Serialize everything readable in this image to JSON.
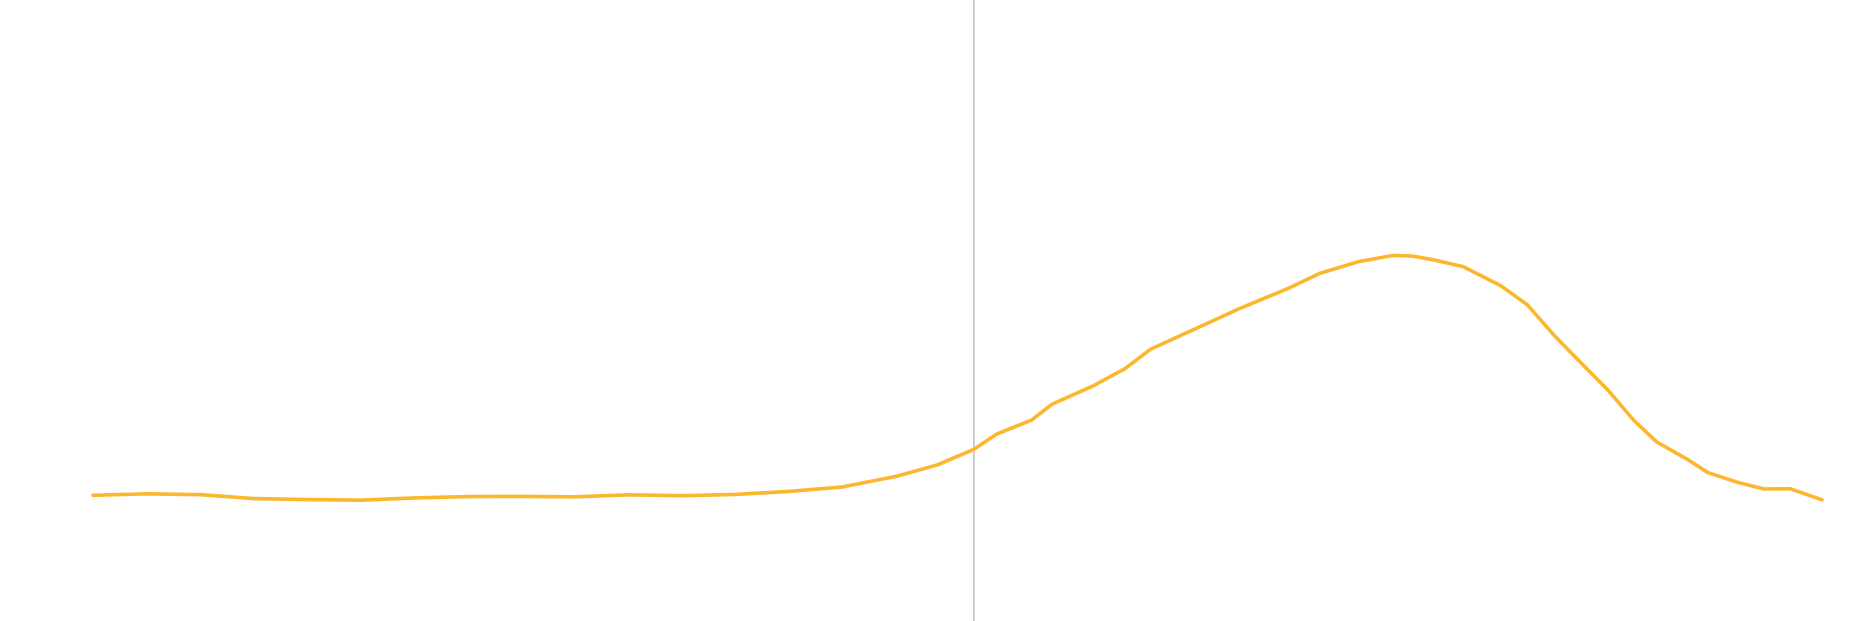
{
  "chart_data": {
    "type": "line",
    "title": "",
    "xlabel": "",
    "ylabel": "",
    "grid": false,
    "legend": "none",
    "xlim": [
      0,
      200
    ],
    "ylim": [
      -1,
      1
    ],
    "marker_x": 101.9,
    "series": [
      {
        "color": "#fbb72d",
        "x": [
          0,
          6.3,
          12.5,
          18.6,
          24.8,
          31,
          37.2,
          43.4,
          49.6,
          55.8,
          62,
          68.2,
          74.3,
          80.5,
          86.7,
          92.9,
          97.7,
          101.9,
          104.5,
          108.6,
          110.9,
          115.7,
          119.4,
          122.3,
          127.9,
          132.7,
          138.3,
          141.9,
          146.4,
          150.4,
          152.6,
          155,
          158.5,
          162.8,
          165.9,
          169,
          171.7,
          175.2,
          178.2,
          180.9,
          184.5,
          186.8,
          190.3,
          193.3,
          196.3,
          200
        ],
        "y": [
          -0.2963,
          -0.2913,
          -0.2944,
          -0.3067,
          -0.3099,
          -0.3119,
          -0.3045,
          -0.3004,
          -0.2997,
          -0.3011,
          -0.2946,
          -0.2975,
          -0.2933,
          -0.2838,
          -0.2694,
          -0.2361,
          -0.1995,
          -0.1501,
          -0.1023,
          -0.0568,
          -0.0076,
          0.0513,
          0.1063,
          0.1671,
          0.2373,
          0.2976,
          0.3613,
          0.4083,
          0.4457,
          0.4654,
          0.4636,
          0.4519,
          0.4297,
          0.3698,
          0.3092,
          0.2122,
          0.1361,
          0.039,
          -0.057,
          -0.1272,
          -0.1832,
          -0.2242,
          -0.2557,
          -0.2762,
          -0.2751,
          -0.3105
        ]
      }
    ]
  }
}
